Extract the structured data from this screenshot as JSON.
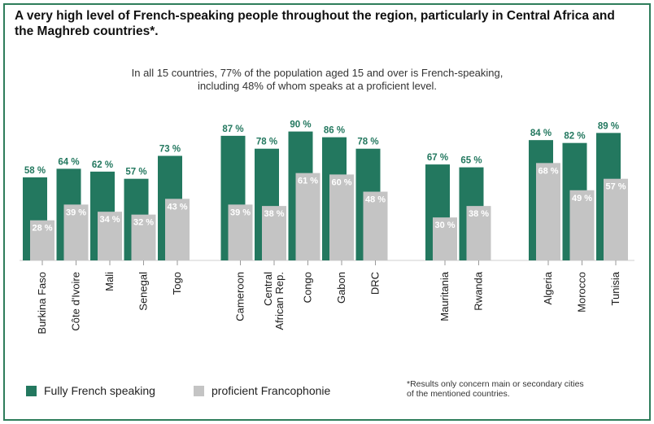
{
  "title": "A very high level of French-speaking people throughout the region, particularly in Central Africa and the Maghreb countries*.",
  "subtitle_line1": "In all 15 countries, 77% of the population aged 15 and over is French-speaking,",
  "subtitle_line2": "including 48% of whom speaks at a proficient level.",
  "footnote_line1": "*Results only concern main or secondary cities",
  "footnote_line2": "of the mentioned countries.",
  "colors": {
    "fully": "#23785f",
    "proficient": "#c4c4c4",
    "border": "#2e7d5b"
  },
  "chart_data": {
    "type": "bar",
    "ylim": [
      0,
      100
    ],
    "grid": false,
    "legend_position": "bottom-left",
    "value_suffix": " %",
    "categories": [
      "Burkina Faso",
      "Côte d'Ivoire",
      "Mali",
      "Senegal",
      "Togo",
      "Cameroon",
      "Central African Rep.",
      "Congo",
      "Gabon",
      "DRC",
      "Mauritania",
      "Rwanda",
      "Algeria",
      "Morocco",
      "Tunisia"
    ],
    "groups": [
      [
        "Burkina Faso",
        "Côte d'Ivoire",
        "Mali",
        "Senegal",
        "Togo"
      ],
      [
        "Cameroon",
        "Central African Rep.",
        "Congo",
        "Gabon",
        "DRC"
      ],
      [
        "Mauritania",
        "Rwanda"
      ],
      [
        "Algeria",
        "Morocco",
        "Tunisia"
      ]
    ],
    "series": [
      {
        "name": "Fully French speaking",
        "values": [
          58,
          64,
          62,
          57,
          73,
          87,
          78,
          90,
          86,
          78,
          67,
          65,
          84,
          82,
          89
        ]
      },
      {
        "name": "proficient Francophonie",
        "values": [
          28,
          39,
          34,
          32,
          43,
          39,
          38,
          61,
          60,
          48,
          30,
          38,
          68,
          49,
          57
        ]
      }
    ]
  }
}
